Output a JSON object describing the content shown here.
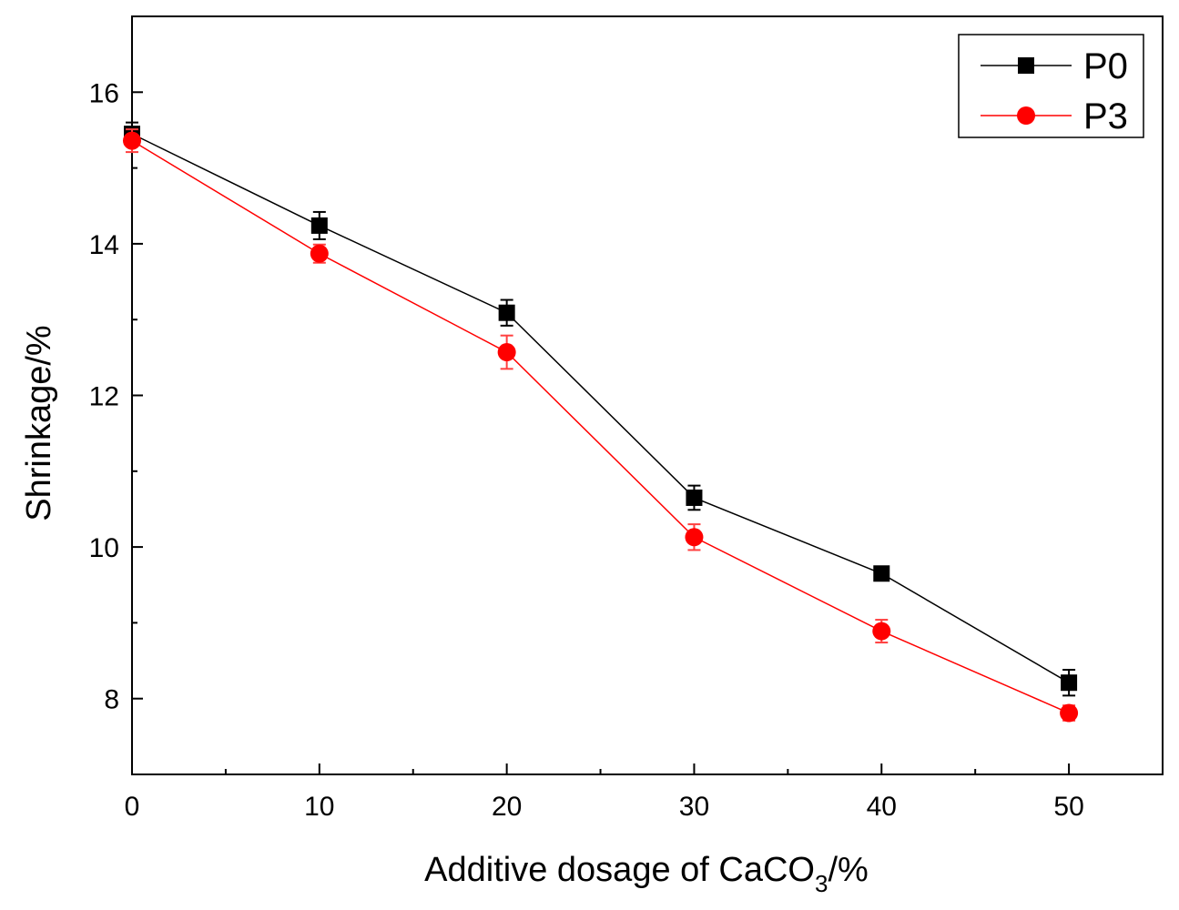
{
  "chart_data": {
    "type": "line",
    "xlabel": "Additive dosage of CaCO",
    "xlabel_sub": "3",
    "xlabel_suffix": "/%",
    "ylabel": "Shrinkage/%",
    "xlim": [
      0,
      55
    ],
    "ylim": [
      7,
      17
    ],
    "x_ticks": [
      0,
      10,
      20,
      30,
      40,
      50
    ],
    "y_ticks": [
      8,
      10,
      12,
      14,
      16
    ],
    "grid": false,
    "legend_position": "top-right",
    "x": [
      0,
      10,
      20,
      30,
      40,
      50
    ],
    "series": [
      {
        "name": "P0",
        "color": "#000000",
        "marker": "square",
        "values": [
          15.45,
          14.24,
          13.09,
          10.65,
          9.65,
          8.21
        ],
        "errors": [
          0.15,
          0.18,
          0.17,
          0.16,
          0.09,
          0.17
        ]
      },
      {
        "name": "P3",
        "color": "#ff0000",
        "marker": "circle",
        "values": [
          15.36,
          13.87,
          12.57,
          10.13,
          8.89,
          7.81
        ],
        "errors": [
          0.15,
          0.12,
          0.22,
          0.17,
          0.15,
          0.1
        ]
      }
    ]
  }
}
